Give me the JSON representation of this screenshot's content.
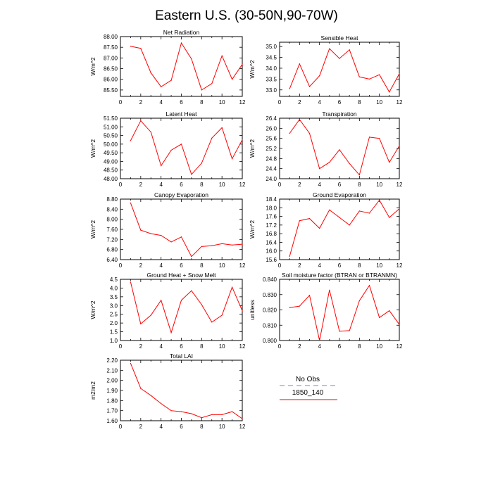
{
  "figure": {
    "title": "Eastern U.S. (30-50N,90-70W)",
    "series_color": "#ff0000",
    "obs_color": "#9999dd"
  },
  "legend": {
    "obs_label": "No Obs",
    "model_label": "1850_140"
  },
  "chart_data": [
    {
      "type": "line",
      "title": "Net Radiation",
      "ylabel": "W/m^2",
      "xlim": [
        0,
        12
      ],
      "ylim": [
        85.2,
        88.0
      ],
      "xticks": [
        "0",
        "2",
        "4",
        "6",
        "8",
        "10",
        "12"
      ],
      "yticks": [
        "85.50",
        "86.00",
        "86.50",
        "87.00",
        "87.50",
        "88.00"
      ],
      "ytick_values": [
        85.5,
        86.0,
        86.5,
        87.0,
        87.5,
        88.0
      ],
      "series": [
        {
          "x": [
            1,
            2,
            3,
            4,
            5,
            6,
            7,
            8,
            9,
            10,
            11,
            12
          ],
          "values": [
            87.55,
            87.45,
            86.3,
            85.65,
            85.95,
            87.7,
            86.95,
            85.5,
            85.8,
            87.1,
            86.0,
            86.7
          ]
        }
      ]
    },
    {
      "type": "line",
      "title": "Sensible Heat",
      "ylabel": "W/m^2",
      "xlim": [
        0,
        12
      ],
      "ylim": [
        32.7,
        35.2
      ],
      "xticks": [
        "0",
        "2",
        "4",
        "6",
        "8",
        "10",
        "12"
      ],
      "yticks": [
        "33.0",
        "33.5",
        "34.0",
        "34.5",
        "35.0"
      ],
      "ytick_values": [
        33.0,
        33.5,
        34.0,
        34.5,
        35.0
      ],
      "series": [
        {
          "x": [
            1,
            2,
            3,
            4,
            5,
            6,
            7,
            8,
            9,
            10,
            11,
            12
          ],
          "values": [
            33.05,
            34.2,
            33.15,
            33.65,
            34.9,
            34.45,
            34.85,
            33.6,
            33.5,
            33.7,
            32.9,
            33.75
          ]
        }
      ]
    },
    {
      "type": "line",
      "title": "Latent Heat",
      "ylabel": "W/m^2",
      "xlim": [
        0,
        12
      ],
      "ylim": [
        48.0,
        51.5
      ],
      "xticks": [
        "0",
        "2",
        "4",
        "6",
        "8",
        "10",
        "12"
      ],
      "yticks": [
        "48.00",
        "48.50",
        "49.00",
        "49.50",
        "50.00",
        "50.50",
        "51.00",
        "51.50"
      ],
      "ytick_values": [
        48.0,
        48.5,
        49.0,
        49.5,
        50.0,
        50.5,
        51.0,
        51.5
      ],
      "series": [
        {
          "x": [
            1,
            2,
            3,
            4,
            5,
            6,
            7,
            8,
            9,
            10,
            11,
            12
          ],
          "values": [
            50.2,
            51.35,
            50.7,
            48.75,
            49.65,
            50.0,
            48.25,
            48.9,
            50.35,
            50.95,
            49.15,
            50.25
          ]
        }
      ]
    },
    {
      "type": "line",
      "title": "Transpiration",
      "ylabel": "W/m^2",
      "xlim": [
        0,
        12
      ],
      "ylim": [
        24.0,
        26.4
      ],
      "xticks": [
        "0",
        "2",
        "4",
        "6",
        "8",
        "10",
        "12"
      ],
      "yticks": [
        "24.0",
        "24.4",
        "24.8",
        "25.2",
        "25.6",
        "26.0",
        "26.4"
      ],
      "ytick_values": [
        24.0,
        24.4,
        24.8,
        25.2,
        25.6,
        26.0,
        26.4
      ],
      "series": [
        {
          "x": [
            1,
            2,
            3,
            4,
            5,
            6,
            7,
            8,
            9,
            10,
            11,
            12
          ],
          "values": [
            25.8,
            26.35,
            25.8,
            24.4,
            24.65,
            25.15,
            24.6,
            24.15,
            25.65,
            25.6,
            24.65,
            25.3
          ]
        }
      ]
    },
    {
      "type": "line",
      "title": "Canopy Evaporation",
      "ylabel": "W/m^2",
      "xlim": [
        0,
        12
      ],
      "ylim": [
        6.4,
        8.8
      ],
      "xticks": [
        "0",
        "2",
        "4",
        "6",
        "8",
        "10",
        "12"
      ],
      "yticks": [
        "6.40",
        "6.80",
        "7.20",
        "7.60",
        "8.00",
        "8.40",
        "8.80"
      ],
      "ytick_values": [
        6.4,
        6.8,
        7.2,
        7.6,
        8.0,
        8.4,
        8.8
      ],
      "series": [
        {
          "x": [
            1,
            2,
            3,
            4,
            5,
            6,
            7,
            8,
            9,
            10,
            11,
            12
          ],
          "values": [
            8.65,
            7.57,
            7.43,
            7.36,
            7.1,
            7.3,
            6.52,
            6.92,
            6.95,
            7.03,
            6.98,
            7.01
          ]
        }
      ]
    },
    {
      "type": "line",
      "title": "Ground Evaporation",
      "ylabel": "W/m^2",
      "xlim": [
        0,
        12
      ],
      "ylim": [
        15.6,
        18.4
      ],
      "xticks": [
        "0",
        "2",
        "4",
        "6",
        "8",
        "10",
        "12"
      ],
      "yticks": [
        "15.6",
        "16.0",
        "16.4",
        "16.8",
        "17.2",
        "17.6",
        "18.0",
        "18.4"
      ],
      "ytick_values": [
        15.6,
        16.0,
        16.4,
        16.8,
        17.2,
        17.6,
        18.0,
        18.4
      ],
      "series": [
        {
          "x": [
            1,
            2,
            3,
            4,
            5,
            6,
            7,
            8,
            9,
            10,
            11,
            12
          ],
          "values": [
            15.75,
            17.4,
            17.5,
            17.05,
            17.9,
            17.55,
            17.2,
            17.85,
            17.75,
            18.35,
            17.55,
            17.95
          ]
        }
      ]
    },
    {
      "type": "line",
      "title": "Ground Heat + Snow Melt",
      "ylabel": "W/m^2",
      "xlim": [
        0,
        12
      ],
      "ylim": [
        1.0,
        4.5
      ],
      "xticks": [
        "0",
        "2",
        "4",
        "6",
        "8",
        "10",
        "12"
      ],
      "yticks": [
        "1.0",
        "1.5",
        "2.0",
        "2.5",
        "3.0",
        "3.5",
        "4.0",
        "4.5"
      ],
      "ytick_values": [
        1.0,
        1.5,
        2.0,
        2.5,
        3.0,
        3.5,
        4.0,
        4.5
      ],
      "series": [
        {
          "x": [
            1,
            2,
            3,
            4,
            5,
            6,
            7,
            8,
            9,
            10,
            11,
            12
          ],
          "values": [
            4.35,
            1.95,
            2.45,
            3.3,
            1.45,
            3.3,
            3.85,
            3.05,
            2.05,
            2.45,
            4.05,
            2.7
          ]
        }
      ]
    },
    {
      "type": "line",
      "title": "Soil moisture factor (BTRAN or BTRANMN)",
      "ylabel": "unitless",
      "xlim": [
        0,
        12
      ],
      "ylim": [
        0.8,
        0.84
      ],
      "xticks": [
        "0",
        "2",
        "4",
        "6",
        "8",
        "10",
        "12"
      ],
      "yticks": [
        "0.800",
        "0.810",
        "0.820",
        "0.830",
        "0.840"
      ],
      "ytick_values": [
        0.8,
        0.81,
        0.82,
        0.83,
        0.84
      ],
      "series": [
        {
          "x": [
            1,
            2,
            3,
            4,
            5,
            6,
            7,
            8,
            9,
            10,
            11,
            12
          ],
          "values": [
            0.8215,
            0.8225,
            0.8295,
            0.8,
            0.833,
            0.806,
            0.8065,
            0.826,
            0.836,
            0.815,
            0.8195,
            0.8105
          ]
        }
      ]
    },
    {
      "type": "line",
      "title": "Total LAI",
      "ylabel": "m2/m2",
      "xlim": [
        0,
        12
      ],
      "ylim": [
        1.6,
        2.2
      ],
      "xticks": [
        "0",
        "2",
        "4",
        "6",
        "8",
        "10",
        "12"
      ],
      "yticks": [
        "1.60",
        "1.70",
        "1.80",
        "1.90",
        "2.00",
        "2.10",
        "2.20"
      ],
      "ytick_values": [
        1.6,
        1.7,
        1.8,
        1.9,
        2.0,
        2.1,
        2.2
      ],
      "series": [
        {
          "x": [
            1,
            2,
            3,
            4,
            5,
            6,
            7,
            8,
            9,
            10,
            11,
            12
          ],
          "values": [
            2.17,
            1.92,
            1.85,
            1.77,
            1.7,
            1.69,
            1.67,
            1.63,
            1.66,
            1.66,
            1.69,
            1.62
          ]
        }
      ]
    }
  ]
}
